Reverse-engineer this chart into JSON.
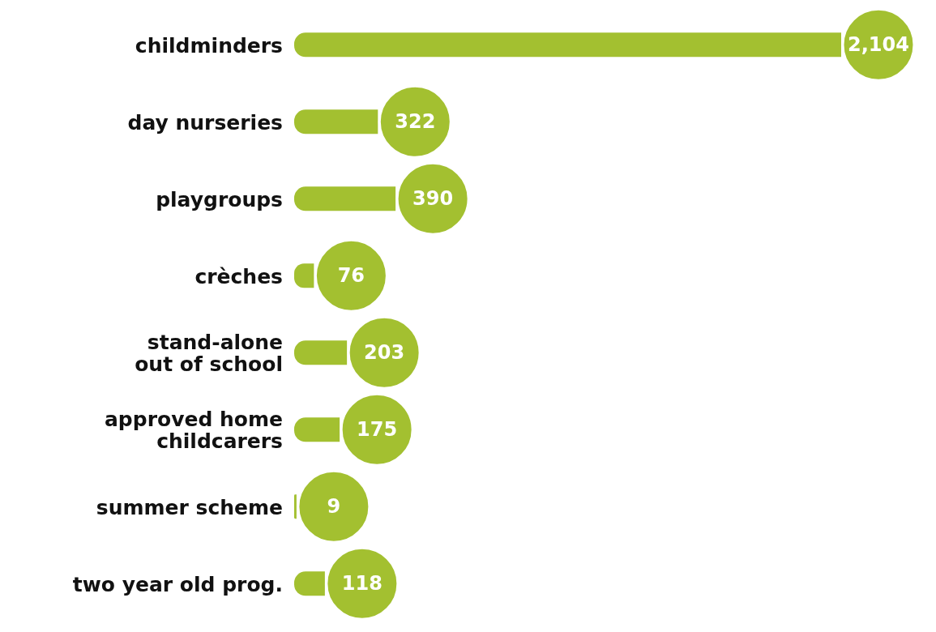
{
  "chart_data": {
    "type": "bar",
    "orientation": "horizontal",
    "categories": [
      "childminders",
      "day nurseries",
      "playgroups",
      "crèches",
      "stand-alone\nout of school",
      "approved home\nchildcarers",
      "summer scheme",
      "two year old prog."
    ],
    "values": [
      2104,
      322,
      390,
      76,
      203,
      175,
      9,
      118
    ],
    "color": "#a3c030",
    "value_labels": [
      "2,104",
      "322",
      "390",
      "76",
      "203",
      "175",
      "9",
      "118"
    ]
  }
}
